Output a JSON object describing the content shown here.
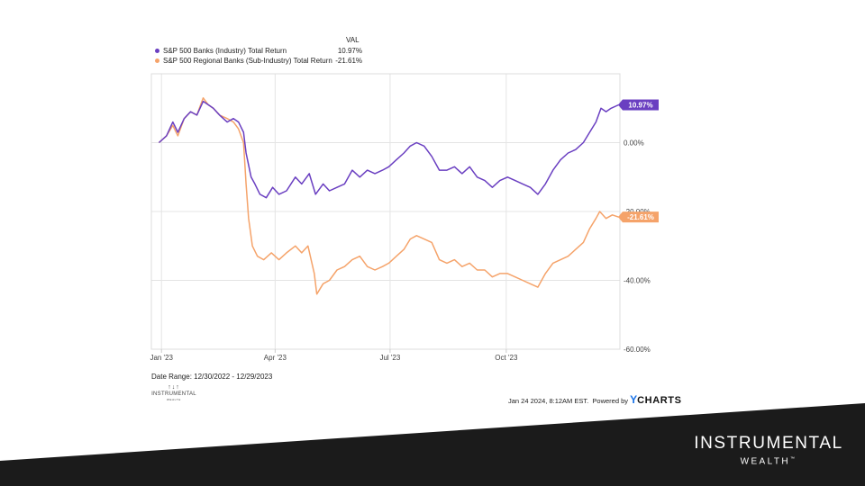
{
  "chart_data": {
    "type": "line",
    "legend_header": "VAL",
    "series": [
      {
        "name": "S&P 500 Banks (Industry) Total Return",
        "value_label": "10.97%",
        "color": "#6a3fc1",
        "points": [
          [
            "2022-12-30",
            0
          ],
          [
            "2023-01-05",
            2
          ],
          [
            "2023-01-10",
            6
          ],
          [
            "2023-01-14",
            3
          ],
          [
            "2023-01-19",
            7
          ],
          [
            "2023-01-24",
            9
          ],
          [
            "2023-01-29",
            8
          ],
          [
            "2023-02-03",
            12
          ],
          [
            "2023-02-07",
            11
          ],
          [
            "2023-02-11",
            10
          ],
          [
            "2023-02-16",
            8
          ],
          [
            "2023-02-22",
            6
          ],
          [
            "2023-02-27",
            7
          ],
          [
            "2023-03-03",
            6
          ],
          [
            "2023-03-07",
            3
          ],
          [
            "2023-03-09",
            -3
          ],
          [
            "2023-03-13",
            -10
          ],
          [
            "2023-03-16",
            -12
          ],
          [
            "2023-03-20",
            -15
          ],
          [
            "2023-03-25",
            -16
          ],
          [
            "2023-03-30",
            -13
          ],
          [
            "2023-04-04",
            -15
          ],
          [
            "2023-04-10",
            -14
          ],
          [
            "2023-04-17",
            -10
          ],
          [
            "2023-04-22",
            -12
          ],
          [
            "2023-04-28",
            -9
          ],
          [
            "2023-05-03",
            -15
          ],
          [
            "2023-05-09",
            -12
          ],
          [
            "2023-05-14",
            -14
          ],
          [
            "2023-05-20",
            -13
          ],
          [
            "2023-05-26",
            -12
          ],
          [
            "2023-06-01",
            -8
          ],
          [
            "2023-06-07",
            -10
          ],
          [
            "2023-06-13",
            -8
          ],
          [
            "2023-06-19",
            -9
          ],
          [
            "2023-06-25",
            -8
          ],
          [
            "2023-06-30",
            -7
          ],
          [
            "2023-07-06",
            -5
          ],
          [
            "2023-07-12",
            -3
          ],
          [
            "2023-07-17",
            -1
          ],
          [
            "2023-07-22",
            0
          ],
          [
            "2023-07-28",
            -1
          ],
          [
            "2023-08-03",
            -4
          ],
          [
            "2023-08-09",
            -8
          ],
          [
            "2023-08-15",
            -8
          ],
          [
            "2023-08-21",
            -7
          ],
          [
            "2023-08-27",
            -9
          ],
          [
            "2023-09-02",
            -7
          ],
          [
            "2023-09-08",
            -10
          ],
          [
            "2023-09-14",
            -11
          ],
          [
            "2023-09-20",
            -13
          ],
          [
            "2023-09-26",
            -11
          ],
          [
            "2023-10-02",
            -10
          ],
          [
            "2023-10-08",
            -11
          ],
          [
            "2023-10-14",
            -12
          ],
          [
            "2023-10-20",
            -13
          ],
          [
            "2023-10-26",
            -15
          ],
          [
            "2023-11-01",
            -12
          ],
          [
            "2023-11-07",
            -8
          ],
          [
            "2023-11-13",
            -5
          ],
          [
            "2023-11-19",
            -3
          ],
          [
            "2023-11-25",
            -2
          ],
          [
            "2023-12-01",
            0
          ],
          [
            "2023-12-06",
            3
          ],
          [
            "2023-12-11",
            6
          ],
          [
            "2023-12-15",
            10
          ],
          [
            "2023-12-19",
            9
          ],
          [
            "2023-12-23",
            10
          ],
          [
            "2023-12-29",
            10.97
          ]
        ]
      },
      {
        "name": "S&P 500 Regional Banks (Sub-Industry) Total Return",
        "value_label": "-21.61%",
        "color": "#f5a36a",
        "points": [
          [
            "2022-12-30",
            0
          ],
          [
            "2023-01-05",
            2
          ],
          [
            "2023-01-10",
            5
          ],
          [
            "2023-01-14",
            2
          ],
          [
            "2023-01-19",
            7
          ],
          [
            "2023-01-24",
            9
          ],
          [
            "2023-01-29",
            8
          ],
          [
            "2023-02-03",
            13
          ],
          [
            "2023-02-07",
            11
          ],
          [
            "2023-02-11",
            10
          ],
          [
            "2023-02-16",
            8
          ],
          [
            "2023-02-22",
            7
          ],
          [
            "2023-02-27",
            6
          ],
          [
            "2023-03-03",
            4
          ],
          [
            "2023-03-07",
            0
          ],
          [
            "2023-03-09",
            -12
          ],
          [
            "2023-03-11",
            -22
          ],
          [
            "2023-03-14",
            -30
          ],
          [
            "2023-03-18",
            -33
          ],
          [
            "2023-03-23",
            -34
          ],
          [
            "2023-03-29",
            -32
          ],
          [
            "2023-04-04",
            -34
          ],
          [
            "2023-04-10",
            -32
          ],
          [
            "2023-04-17",
            -30
          ],
          [
            "2023-04-22",
            -32
          ],
          [
            "2023-04-27",
            -30
          ],
          [
            "2023-05-02",
            -38
          ],
          [
            "2023-05-04",
            -44
          ],
          [
            "2023-05-09",
            -41
          ],
          [
            "2023-05-14",
            -40
          ],
          [
            "2023-05-20",
            -37
          ],
          [
            "2023-05-26",
            -36
          ],
          [
            "2023-06-01",
            -34
          ],
          [
            "2023-06-07",
            -33
          ],
          [
            "2023-06-13",
            -36
          ],
          [
            "2023-06-19",
            -37
          ],
          [
            "2023-06-25",
            -36
          ],
          [
            "2023-06-30",
            -35
          ],
          [
            "2023-07-06",
            -33
          ],
          [
            "2023-07-12",
            -31
          ],
          [
            "2023-07-17",
            -28
          ],
          [
            "2023-07-22",
            -27
          ],
          [
            "2023-07-28",
            -28
          ],
          [
            "2023-08-03",
            -29
          ],
          [
            "2023-08-09",
            -34
          ],
          [
            "2023-08-15",
            -35
          ],
          [
            "2023-08-21",
            -34
          ],
          [
            "2023-08-27",
            -36
          ],
          [
            "2023-09-02",
            -35
          ],
          [
            "2023-09-08",
            -37
          ],
          [
            "2023-09-14",
            -37
          ],
          [
            "2023-09-20",
            -39
          ],
          [
            "2023-09-26",
            -38
          ],
          [
            "2023-10-02",
            -38
          ],
          [
            "2023-10-08",
            -39
          ],
          [
            "2023-10-14",
            -40
          ],
          [
            "2023-10-20",
            -41
          ],
          [
            "2023-10-26",
            -42
          ],
          [
            "2023-11-01",
            -38
          ],
          [
            "2023-11-07",
            -35
          ],
          [
            "2023-11-13",
            -34
          ],
          [
            "2023-11-19",
            -33
          ],
          [
            "2023-11-25",
            -31
          ],
          [
            "2023-12-01",
            -29
          ],
          [
            "2023-12-06",
            -25
          ],
          [
            "2023-12-11",
            -22
          ],
          [
            "2023-12-14",
            -20
          ],
          [
            "2023-12-19",
            -22
          ],
          [
            "2023-12-24",
            -21
          ],
          [
            "2023-12-29",
            -21.61
          ]
        ]
      }
    ],
    "x_range": [
      "2022-12-24",
      "2023-12-30"
    ],
    "x_ticks": [
      {
        "date": "2023-01-01",
        "label": "Jan '23"
      },
      {
        "date": "2023-04-01",
        "label": "Apr '23"
      },
      {
        "date": "2023-07-01",
        "label": "Jul '23"
      },
      {
        "date": "2023-10-01",
        "label": "Oct '23"
      }
    ],
    "ylim": [
      -60,
      20
    ],
    "y_ticks": [
      {
        "value": 0,
        "label": "0.00%"
      },
      {
        "value": -20,
        "label": "-20.00%"
      },
      {
        "value": -40,
        "label": "-40.00%"
      },
      {
        "value": -60,
        "label": "-60.00%"
      }
    ],
    "grid": true,
    "legend_position": "top-left"
  },
  "range_text": "Date Range: 12/30/2022 - 12/29/2023",
  "mini_logo": {
    "line1": "INSTRUMENTAL",
    "line2": "WEALTH"
  },
  "credit": {
    "timestamp": "Jan 24 2024, 8:12AM EST.",
    "powered_by": "Powered by",
    "brand_y": "Y",
    "brand_rest": "CHARTS"
  },
  "brand": {
    "line1": "INSTRUMENTAL",
    "line2": "WEALTH",
    "tm": "™"
  },
  "colors": {
    "footer_band": "#1b1b1b",
    "grid": "#e4e4e4",
    "axis": "#cccccc"
  }
}
